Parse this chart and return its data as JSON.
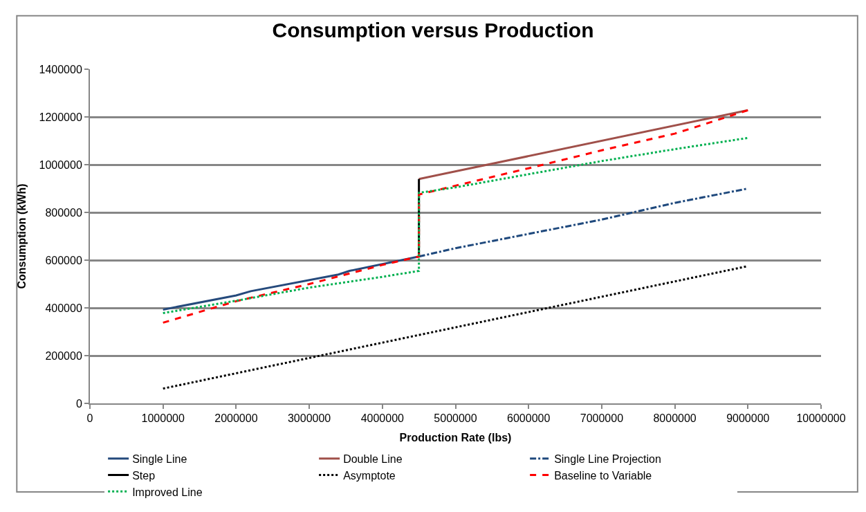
{
  "chart_data": {
    "type": "line",
    "title": "Consumption versus Production",
    "xlabel": "Production Rate (lbs)",
    "ylabel": "Consumption (kWh)",
    "xlim": [
      0,
      10000000
    ],
    "xticks": [
      0,
      1000000,
      2000000,
      3000000,
      4000000,
      5000000,
      6000000,
      7000000,
      8000000,
      9000000,
      10000000
    ],
    "ylim": [
      0,
      1400000
    ],
    "yticks": [
      0,
      200000,
      400000,
      600000,
      800000,
      1000000,
      1200000,
      1400000
    ],
    "grid": "y",
    "legend": "bottom",
    "marker": "none",
    "series": [
      {
        "name": "Single Line",
        "color": "#254a7c",
        "line_style": "solid",
        "x": [
          1000000,
          2000000,
          2200000,
          3400000,
          3550000,
          4500000
        ],
        "values": [
          393000,
          452000,
          470000,
          540000,
          555000,
          615000
        ]
      },
      {
        "name": "Double Line",
        "color": "#a0504a",
        "line_style": "solid",
        "x": [
          4500000,
          9000000
        ],
        "values": [
          940000,
          1228000
        ]
      },
      {
        "name": "Single Line Projection",
        "color": "#1f497d",
        "line_style": "dashdot",
        "x": [
          4500000,
          5000000,
          6000000,
          7000000,
          8000000,
          9000000
        ],
        "values": [
          615000,
          650000,
          710000,
          770000,
          840000,
          900000
        ]
      },
      {
        "name": "Step",
        "color": "#000000",
        "line_style": "solid",
        "x": [
          4500000,
          4500000
        ],
        "values": [
          615000,
          940000
        ]
      },
      {
        "name": "Asymptote",
        "color": "#000000",
        "line_style": "dotted",
        "x": [
          1000000,
          9000000
        ],
        "values": [
          62000,
          575000
        ]
      },
      {
        "name": "Baseline to Variable",
        "color": "#ff0000",
        "line_style": "dashed",
        "x": [
          1000000,
          2000000,
          3000000,
          4000000,
          4500000,
          4500000,
          5000000,
          6000000,
          7000000,
          8000000,
          9000000
        ],
        "values": [
          338000,
          428000,
          500000,
          580000,
          615000,
          875000,
          912000,
          985000,
          1060000,
          1130000,
          1228000
        ]
      },
      {
        "name": "Improved Line",
        "color": "#00b050",
        "line_style": "dotted",
        "x": [
          1000000,
          2000000,
          3000000,
          4000000,
          4500000,
          4500000,
          5000000,
          6000000,
          7000000,
          8000000,
          9000000
        ],
        "values": [
          378000,
          430000,
          485000,
          530000,
          555000,
          882000,
          905000,
          960000,
          1015000,
          1065000,
          1112000
        ]
      }
    ]
  }
}
